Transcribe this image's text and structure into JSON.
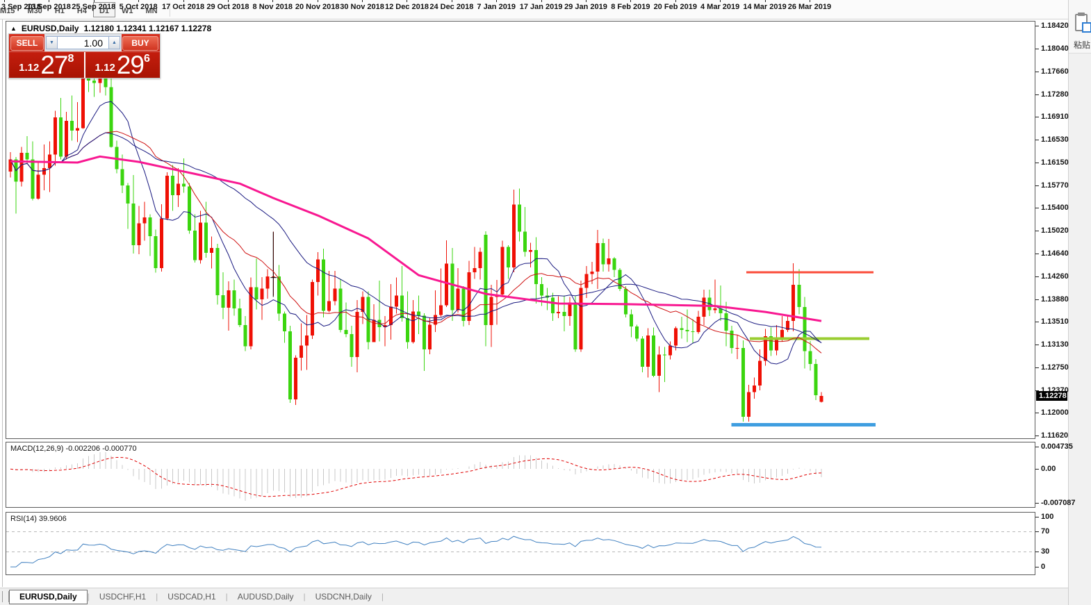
{
  "toolbar": {
    "timeframes": [
      "M15",
      "M30",
      "H1",
      "H4",
      "D1",
      "W1",
      "MN"
    ],
    "active_timeframe": "D1"
  },
  "side_app": {
    "paste_label": "粘贴"
  },
  "header": {
    "arrow": "▲",
    "title": "EURUSD,Daily",
    "ohlc": "1.12180 1.12341 1.12167 1.12278"
  },
  "one_click": {
    "sell_label": "SELL",
    "buy_label": "BUY",
    "volume": "1.00",
    "volume_down_glyph": "▼",
    "volume_up_glyph": "▲",
    "sell_price": {
      "prefix": "1.12",
      "big": "27",
      "sup": "8"
    },
    "buy_price": {
      "prefix": "1.12",
      "big": "29",
      "sup": "6"
    }
  },
  "tab_bar": {
    "tabs": [
      "EURUSD,Daily",
      "USDCHF,H1",
      "USDCAD,H1",
      "AUDUSD,Daily",
      "USDCNH,Daily"
    ],
    "active": "EURUSD,Daily"
  },
  "chart_data": {
    "type": "candlestick",
    "title": "EURUSD,Daily",
    "symbol": "EURUSD",
    "timeframe": "D1",
    "current_ohlc": {
      "open": 1.1218,
      "high": 1.12341,
      "low": 1.12167,
      "close": 1.12278
    },
    "current_price_label": "1.12278",
    "ylim": [
      1.11574,
      1.18489
    ],
    "price_ticks": [
      "1.18420",
      "1.18040",
      "1.17660",
      "1.17280",
      "1.16910",
      "1.16530",
      "1.16150",
      "1.15770",
      "1.15400",
      "1.15020",
      "1.14640",
      "1.14260",
      "1.13880",
      "1.13510",
      "1.13130",
      "1.12750",
      "1.12370",
      "1.12000",
      "1.11620"
    ],
    "up_color": "#ef1005",
    "down_color": "#3bd50f",
    "x_labels": [
      {
        "i": 0,
        "t": "3 Sep 2018"
      },
      {
        "i": 8,
        "t": "13 Sep 2018"
      },
      {
        "i": 16,
        "t": "25 Sep 2018"
      },
      {
        "i": 24,
        "t": "5 Oct 2018"
      },
      {
        "i": 32,
        "t": "17 Oct 2018"
      },
      {
        "i": 40,
        "t": "29 Oct 2018"
      },
      {
        "i": 48,
        "t": "8 Nov 2018"
      },
      {
        "i": 56,
        "t": "20 Nov 2018"
      },
      {
        "i": 64,
        "t": "30 Nov 2018"
      },
      {
        "i": 72,
        "t": "12 Dec 2018"
      },
      {
        "i": 80,
        "t": "24 Dec 2018"
      },
      {
        "i": 88,
        "t": "7 Jan 2019"
      },
      {
        "i": 96,
        "t": "17 Jan 2019"
      },
      {
        "i": 104,
        "t": "29 Jan 2019"
      },
      {
        "i": 112,
        "t": "8 Feb 2019"
      },
      {
        "i": 120,
        "t": "20 Feb 2019"
      },
      {
        "i": 128,
        "t": "4 Mar 2019"
      },
      {
        "i": 136,
        "t": "14 Mar 2019"
      },
      {
        "i": 144,
        "t": "26 Mar 2019"
      }
    ],
    "candles": [
      [
        1.16,
        1.1632,
        1.159,
        1.162
      ],
      [
        1.162,
        1.1624,
        1.153,
        1.1583
      ],
      [
        1.1583,
        1.1641,
        1.1575,
        1.1631
      ],
      [
        1.1631,
        1.1659,
        1.1612,
        1.162
      ],
      [
        1.162,
        1.165,
        1.1552,
        1.1555
      ],
      [
        1.1555,
        1.1617,
        1.1553,
        1.1595
      ],
      [
        1.1595,
        1.1645,
        1.1569,
        1.1606
      ],
      [
        1.1606,
        1.165,
        1.1566,
        1.1628
      ],
      [
        1.1628,
        1.1701,
        1.161,
        1.169
      ],
      [
        1.169,
        1.1722,
        1.162,
        1.1625
      ],
      [
        1.1625,
        1.1699,
        1.162,
        1.1684
      ],
      [
        1.1684,
        1.1726,
        1.1651,
        1.1668
      ],
      [
        1.1668,
        1.1715,
        1.1649,
        1.1672
      ],
      [
        1.1672,
        1.1785,
        1.1671,
        1.1777
      ],
      [
        1.1777,
        1.1802,
        1.1732,
        1.1751
      ],
      [
        1.1751,
        1.1815,
        1.1724,
        1.1747
      ],
      [
        1.1747,
        1.1795,
        1.1731,
        1.1766
      ],
      [
        1.1766,
        1.1798,
        1.1726,
        1.174
      ],
      [
        1.174,
        1.1758,
        1.164,
        1.1641
      ],
      [
        1.1641,
        1.1651,
        1.1597,
        1.1604
      ],
      [
        1.1604,
        1.1628,
        1.1564,
        1.1577
      ],
      [
        1.1577,
        1.1581,
        1.1505,
        1.1547
      ],
      [
        1.1547,
        1.1594,
        1.1464,
        1.1478
      ],
      [
        1.1478,
        1.1543,
        1.1463,
        1.1514
      ],
      [
        1.1514,
        1.155,
        1.1485,
        1.1524
      ],
      [
        1.1524,
        1.1529,
        1.146,
        1.1493
      ],
      [
        1.1493,
        1.1504,
        1.1432,
        1.144
      ],
      [
        1.144,
        1.1546,
        1.1434,
        1.1522
      ],
      [
        1.1522,
        1.1599,
        1.1519,
        1.1593
      ],
      [
        1.1593,
        1.1611,
        1.1535,
        1.1561
      ],
      [
        1.1561,
        1.1606,
        1.1541,
        1.158
      ],
      [
        1.158,
        1.1622,
        1.1565,
        1.1575
      ],
      [
        1.1575,
        1.1581,
        1.1497,
        1.1502
      ],
      [
        1.1502,
        1.1529,
        1.1449,
        1.1453
      ],
      [
        1.1453,
        1.1535,
        1.1447,
        1.1515
      ],
      [
        1.1515,
        1.155,
        1.1457,
        1.1465
      ],
      [
        1.1465,
        1.1492,
        1.1439,
        1.1473
      ],
      [
        1.1473,
        1.148,
        1.1379,
        1.1395
      ],
      [
        1.1395,
        1.1433,
        1.1355,
        1.1374
      ],
      [
        1.1374,
        1.1418,
        1.1336,
        1.1403
      ],
      [
        1.1403,
        1.1421,
        1.1361,
        1.1373
      ],
      [
        1.1373,
        1.1389,
        1.1342,
        1.1345
      ],
      [
        1.1345,
        1.136,
        1.1302,
        1.131
      ],
      [
        1.131,
        1.1424,
        1.1305,
        1.1408
      ],
      [
        1.1408,
        1.1456,
        1.1371,
        1.1388
      ],
      [
        1.1388,
        1.1425,
        1.1354,
        1.1406
      ],
      [
        1.1406,
        1.1438,
        1.1389,
        1.1426
      ],
      [
        1.1426,
        1.15,
        1.1394,
        1.1426
      ],
      [
        1.1426,
        1.1445,
        1.1352,
        1.1364
      ],
      [
        1.1364,
        1.1368,
        1.1316,
        1.1335
      ],
      [
        1.1335,
        1.1344,
        1.1216,
        1.1222
      ],
      [
        1.1222,
        1.1295,
        1.1213,
        1.1291
      ],
      [
        1.1291,
        1.1348,
        1.127,
        1.1311
      ],
      [
        1.1311,
        1.1362,
        1.1271,
        1.1328
      ],
      [
        1.1328,
        1.1421,
        1.1322,
        1.1417
      ],
      [
        1.1417,
        1.1466,
        1.1394,
        1.1454
      ],
      [
        1.1454,
        1.1472,
        1.1358,
        1.1369
      ],
      [
        1.1369,
        1.1435,
        1.1366,
        1.1385
      ],
      [
        1.1385,
        1.1435,
        1.1378,
        1.1406
      ],
      [
        1.1406,
        1.1421,
        1.1333,
        1.1337
      ],
      [
        1.1337,
        1.1383,
        1.1325,
        1.133
      ],
      [
        1.133,
        1.1344,
        1.1276,
        1.1292
      ],
      [
        1.1292,
        1.1387,
        1.1267,
        1.1367
      ],
      [
        1.1367,
        1.1401,
        1.1347,
        1.1392
      ],
      [
        1.1392,
        1.1401,
        1.1305,
        1.1317
      ],
      [
        1.1317,
        1.138,
        1.1317,
        1.1354
      ],
      [
        1.1354,
        1.1419,
        1.1318,
        1.1342
      ],
      [
        1.1342,
        1.136,
        1.131,
        1.1345
      ],
      [
        1.1345,
        1.1413,
        1.1321,
        1.1376
      ],
      [
        1.1376,
        1.1424,
        1.1364,
        1.1394
      ],
      [
        1.1394,
        1.1443,
        1.1351,
        1.1357
      ],
      [
        1.1357,
        1.1401,
        1.1306,
        1.1317
      ],
      [
        1.1317,
        1.1387,
        1.1315,
        1.1368
      ],
      [
        1.1368,
        1.1394,
        1.133,
        1.1361
      ],
      [
        1.1361,
        1.1365,
        1.1269,
        1.1305
      ],
      [
        1.1305,
        1.1358,
        1.1297,
        1.1346
      ],
      [
        1.1346,
        1.1403,
        1.1334,
        1.1362
      ],
      [
        1.1362,
        1.1439,
        1.1359,
        1.1378
      ],
      [
        1.1378,
        1.1486,
        1.1375,
        1.1447
      ],
      [
        1.1447,
        1.1473,
        1.1352,
        1.137
      ],
      [
        1.137,
        1.144,
        1.1366,
        1.1406
      ],
      [
        1.1406,
        1.141,
        1.1343,
        1.1352
      ],
      [
        1.1352,
        1.1452,
        1.1345,
        1.1433
      ],
      [
        1.1433,
        1.1475,
        1.1422,
        1.144
      ],
      [
        1.144,
        1.1474,
        1.1421,
        1.1467
      ],
      [
        1.1495,
        1.1501,
        1.131,
        1.1345
      ],
      [
        1.1345,
        1.1412,
        1.1309,
        1.1392
      ],
      [
        1.1392,
        1.142,
        1.1346,
        1.1396
      ],
      [
        1.1396,
        1.1485,
        1.1394,
        1.1475
      ],
      [
        1.1475,
        1.1478,
        1.1422,
        1.1441
      ],
      [
        1.1441,
        1.157,
        1.1433,
        1.1545
      ],
      [
        1.1545,
        1.1572,
        1.1484,
        1.15
      ],
      [
        1.15,
        1.1541,
        1.1459,
        1.1467
      ],
      [
        1.1467,
        1.1482,
        1.1441,
        1.147
      ],
      [
        1.147,
        1.1491,
        1.1381,
        1.1413
      ],
      [
        1.1413,
        1.1425,
        1.1377,
        1.1394
      ],
      [
        1.1394,
        1.1407,
        1.137,
        1.1391
      ],
      [
        1.1391,
        1.1399,
        1.1352,
        1.1365
      ],
      [
        1.1365,
        1.1393,
        1.1357,
        1.1367
      ],
      [
        1.1367,
        1.1394,
        1.1335,
        1.136
      ],
      [
        1.136,
        1.1392,
        1.1344,
        1.1383
      ],
      [
        1.1383,
        1.1393,
        1.1301,
        1.1305
      ],
      [
        1.1305,
        1.1419,
        1.1301,
        1.1407
      ],
      [
        1.1407,
        1.1443,
        1.139,
        1.143
      ],
      [
        1.143,
        1.145,
        1.1413,
        1.1434
      ],
      [
        1.1434,
        1.1503,
        1.1405,
        1.1481
      ],
      [
        1.1481,
        1.1489,
        1.1434,
        1.1446
      ],
      [
        1.1446,
        1.1488,
        1.1434,
        1.1456
      ],
      [
        1.1456,
        1.1458,
        1.1425,
        1.1437
      ],
      [
        1.1437,
        1.144,
        1.1402,
        1.1405
      ],
      [
        1.1405,
        1.141,
        1.1358,
        1.1363
      ],
      [
        1.1363,
        1.1371,
        1.1325,
        1.1343
      ],
      [
        1.1343,
        1.1346,
        1.1318,
        1.1323
      ],
      [
        1.1323,
        1.1327,
        1.1267,
        1.1276
      ],
      [
        1.1276,
        1.134,
        1.1258,
        1.1328
      ],
      [
        1.1328,
        1.1341,
        1.1259,
        1.1261
      ],
      [
        1.1261,
        1.131,
        1.1234,
        1.1296
      ],
      [
        1.1296,
        1.1309,
        1.1251,
        1.1295
      ],
      [
        1.1295,
        1.1318,
        1.1288,
        1.1311
      ],
      [
        1.1311,
        1.1343,
        1.1303,
        1.134
      ],
      [
        1.134,
        1.1359,
        1.1323,
        1.1337
      ],
      [
        1.1337,
        1.1371,
        1.1317,
        1.1335
      ],
      [
        1.1335,
        1.1355,
        1.1316,
        1.1334
      ],
      [
        1.1334,
        1.1369,
        1.1331,
        1.1359
      ],
      [
        1.1359,
        1.1404,
        1.1345,
        1.1391
      ],
      [
        1.1391,
        1.1404,
        1.136,
        1.137
      ],
      [
        1.137,
        1.1421,
        1.1365,
        1.1373
      ],
      [
        1.1373,
        1.1411,
        1.1352,
        1.1365
      ],
      [
        1.1365,
        1.1384,
        1.131,
        1.1336
      ],
      [
        1.1336,
        1.1344,
        1.1298,
        1.1307
      ],
      [
        1.1307,
        1.1329,
        1.1289,
        1.1307
      ],
      [
        1.1307,
        1.132,
        1.1185,
        1.1193
      ],
      [
        1.1193,
        1.1246,
        1.1185,
        1.1234
      ],
      [
        1.1234,
        1.1258,
        1.1223,
        1.1245
      ],
      [
        1.1245,
        1.1305,
        1.1237,
        1.1286
      ],
      [
        1.1286,
        1.1339,
        1.1278,
        1.1327
      ],
      [
        1.1327,
        1.1341,
        1.1294,
        1.1303
      ],
      [
        1.1303,
        1.1345,
        1.1295,
        1.1324
      ],
      [
        1.1324,
        1.136,
        1.1318,
        1.1337
      ],
      [
        1.1337,
        1.1362,
        1.1334,
        1.1352
      ],
      [
        1.1352,
        1.1448,
        1.1335,
        1.1412
      ],
      [
        1.1412,
        1.1438,
        1.1363,
        1.1375
      ],
      [
        1.1375,
        1.1392,
        1.1273,
        1.1302
      ],
      [
        1.1302,
        1.1319,
        1.127,
        1.1281
      ],
      [
        1.1281,
        1.1289,
        1.1221,
        1.1229
      ],
      [
        1.1218,
        1.12341,
        1.12167,
        1.12278
      ]
    ],
    "moving_averages": [
      {
        "type": "sma",
        "period": 9,
        "color": "#191980",
        "width": 1
      },
      {
        "type": "sma",
        "period": 18,
        "color": "#cf1111",
        "width": 1
      },
      {
        "type": "sma",
        "period": 36,
        "color": "#191980",
        "width": 1
      }
    ],
    "slow_ma": {
      "color": "#f81891",
      "width": 3,
      "points": [
        [
          0,
          1.1617
        ],
        [
          12,
          1.1615
        ],
        [
          16,
          1.1625
        ],
        [
          23,
          1.1616
        ],
        [
          28,
          1.1606
        ],
        [
          33,
          1.1596
        ],
        [
          41,
          1.158
        ],
        [
          47,
          1.1556
        ],
        [
          55,
          1.1527
        ],
        [
          64,
          1.1489
        ],
        [
          73,
          1.1428
        ],
        [
          85,
          1.1397
        ],
        [
          98,
          1.1381
        ],
        [
          110,
          1.138
        ],
        [
          126,
          1.1377
        ],
        [
          135,
          1.1367
        ],
        [
          145,
          1.1352
        ]
      ]
    },
    "hlines": [
      {
        "price": 1.1433,
        "from_index": 131.6,
        "to_index": 154.3,
        "color": "#fb4b39",
        "width": 3
      },
      {
        "price": 1.1323,
        "from_index": 132.2,
        "to_index": 153.6,
        "color": "#9acd32",
        "width": 4
      },
      {
        "price": 1.118,
        "from_index": 128.9,
        "to_index": 154.7,
        "color": "#3f9ee0",
        "width": 5
      }
    ],
    "vlines": [
      {
        "index": 47,
        "price_from": 1.15,
        "price_to": 1.1392,
        "tick_price": 1.1424,
        "color": "#000000"
      }
    ],
    "indicators": [
      {
        "name": "MACD",
        "label": "MACD(12,26,9) -0.002206 -0.000770",
        "params": [
          12,
          26,
          9
        ],
        "main_value": -0.002206,
        "signal_value": -0.00077,
        "ylim": [
          -0.00795,
          0.00554
        ],
        "ticks": [
          "0.004735",
          "0.00",
          "-0.007087"
        ],
        "tick_values": [
          0.004735,
          0,
          -0.007087
        ],
        "histogram_color": "#c8c8c8",
        "signal_color": "#e00000"
      },
      {
        "name": "RSI",
        "label": "RSI(14) 39.9606",
        "period": 14,
        "value": 39.9606,
        "ylim": [
          -15,
          108
        ],
        "ticks": [
          "100",
          "70",
          "30",
          "0"
        ],
        "tick_values": [
          100,
          70,
          30,
          0
        ],
        "levels": [
          70,
          30
        ],
        "line_color": "#4080c0",
        "level_color": "#b8b8b8"
      }
    ]
  }
}
